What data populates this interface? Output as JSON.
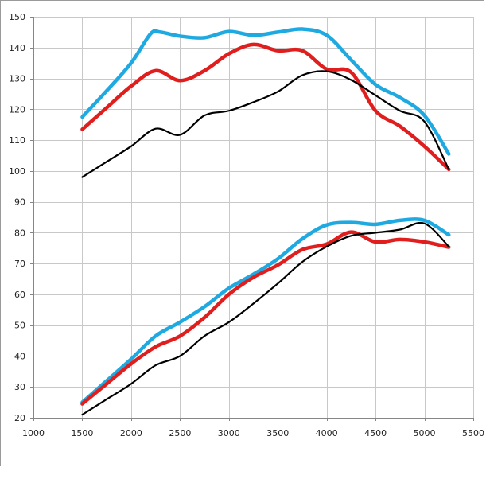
{
  "chart_data": {
    "type": "line",
    "title": "",
    "xlabel": "",
    "ylabel": "",
    "xlim": [
      1000,
      5500
    ],
    "ylim": [
      20,
      150
    ],
    "xticks": [
      1000,
      1500,
      2000,
      2500,
      3000,
      3500,
      4000,
      4500,
      5000,
      5500
    ],
    "yticks": [
      20,
      30,
      40,
      50,
      60,
      70,
      80,
      90,
      100,
      110,
      120,
      130,
      140,
      150
    ],
    "x_tick_labels": [
      "1000",
      "1500",
      "2000",
      "2500",
      "3000",
      "3500",
      "4000",
      "4500",
      "5000",
      "5500"
    ],
    "y_tick_labels": [
      "20",
      "30",
      "40",
      "50",
      "60",
      "70",
      "80",
      "90",
      "100",
      "110",
      "120",
      "130",
      "140",
      "150"
    ],
    "grid": true,
    "legend": "none",
    "series": [
      {
        "color": "#1fa9e1",
        "stroke": "thick",
        "points": [
          [
            1500,
            117.5
          ],
          [
            1750,
            126
          ],
          [
            2000,
            135
          ],
          [
            2200,
            144.5
          ],
          [
            2300,
            145
          ],
          [
            2500,
            143.7
          ],
          [
            2750,
            143.2
          ],
          [
            3000,
            145.2
          ],
          [
            3250,
            144
          ],
          [
            3500,
            145
          ],
          [
            3750,
            146
          ],
          [
            4000,
            144
          ],
          [
            4250,
            136
          ],
          [
            4500,
            128
          ],
          [
            4750,
            123.8
          ],
          [
            5000,
            118
          ],
          [
            5250,
            105.5
          ]
        ]
      },
      {
        "color": "#e01e1e",
        "stroke": "thick",
        "points": [
          [
            1500,
            113.5
          ],
          [
            1750,
            120.5
          ],
          [
            2000,
            127.5
          ],
          [
            2250,
            132.5
          ],
          [
            2500,
            129.3
          ],
          [
            2750,
            132.5
          ],
          [
            3000,
            138
          ],
          [
            3250,
            141
          ],
          [
            3500,
            139
          ],
          [
            3750,
            139
          ],
          [
            4000,
            133
          ],
          [
            4250,
            132
          ],
          [
            4500,
            119.5
          ],
          [
            4750,
            114.5
          ],
          [
            5000,
            108
          ],
          [
            5250,
            100.5
          ]
        ]
      },
      {
        "color": "#000000",
        "stroke": "thin",
        "points": [
          [
            1500,
            98
          ],
          [
            1750,
            103
          ],
          [
            2000,
            108
          ],
          [
            2250,
            113.7
          ],
          [
            2500,
            111.7
          ],
          [
            2750,
            118
          ],
          [
            3000,
            119.5
          ],
          [
            3250,
            122.3
          ],
          [
            3500,
            125.7
          ],
          [
            3750,
            131
          ],
          [
            4000,
            132.3
          ],
          [
            4250,
            129.5
          ],
          [
            4500,
            124.5
          ],
          [
            4750,
            119.5
          ],
          [
            5000,
            116
          ],
          [
            5250,
            100.5
          ]
        ]
      },
      {
        "color": "#1fa9e1",
        "stroke": "thick",
        "points": [
          [
            1500,
            25
          ],
          [
            1750,
            32
          ],
          [
            2000,
            39
          ],
          [
            2250,
            46.5
          ],
          [
            2500,
            51
          ],
          [
            2750,
            56
          ],
          [
            3000,
            62
          ],
          [
            3250,
            66.5
          ],
          [
            3500,
            71.5
          ],
          [
            3750,
            78
          ],
          [
            4000,
            82.5
          ],
          [
            4250,
            83.3
          ],
          [
            4500,
            82.7
          ],
          [
            4750,
            84
          ],
          [
            5000,
            84
          ],
          [
            5250,
            79.3
          ]
        ]
      },
      {
        "color": "#e01e1e",
        "stroke": "thick",
        "points": [
          [
            1500,
            24.5
          ],
          [
            1750,
            31
          ],
          [
            2000,
            37.5
          ],
          [
            2250,
            43
          ],
          [
            2500,
            46.5
          ],
          [
            2750,
            52.5
          ],
          [
            3000,
            60
          ],
          [
            3250,
            65.5
          ],
          [
            3500,
            69.5
          ],
          [
            3750,
            74.5
          ],
          [
            4000,
            76.3
          ],
          [
            4250,
            80.2
          ],
          [
            4500,
            77
          ],
          [
            4750,
            77.8
          ],
          [
            5000,
            77
          ],
          [
            5250,
            75.3
          ]
        ]
      },
      {
        "color": "#000000",
        "stroke": "thin",
        "points": [
          [
            1500,
            21
          ],
          [
            1750,
            26
          ],
          [
            2000,
            31
          ],
          [
            2250,
            37
          ],
          [
            2500,
            40
          ],
          [
            2750,
            46.5
          ],
          [
            3000,
            51
          ],
          [
            3250,
            57
          ],
          [
            3500,
            63.5
          ],
          [
            3750,
            70.5
          ],
          [
            4000,
            75.5
          ],
          [
            4250,
            79
          ],
          [
            4500,
            80
          ],
          [
            4750,
            81
          ],
          [
            5000,
            83
          ],
          [
            5250,
            75.5
          ]
        ]
      }
    ]
  }
}
